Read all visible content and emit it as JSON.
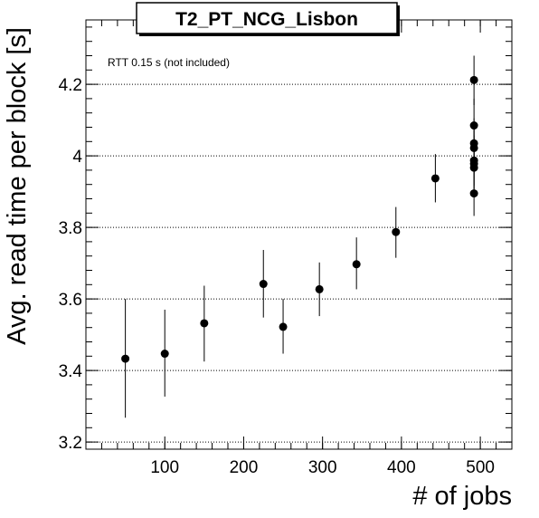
{
  "chart_data": {
    "type": "scatter",
    "title": "T2_PT_NCG_Lisbon",
    "annotation": "RTT 0.15 s (not included)",
    "xlabel": "# of jobs",
    "ylabel": "Avg. read time per block [s]",
    "xlim": [
      0,
      540
    ],
    "ylim": [
      3.18,
      4.38
    ],
    "x_ticks": [
      100,
      200,
      300,
      400,
      500
    ],
    "y_ticks": [
      3.2,
      3.4,
      3.6,
      3.8,
      4.0,
      4.2
    ],
    "y_tick_labels": [
      "3.2",
      "3.4",
      "3.6",
      "3.8",
      "4",
      "4.2"
    ],
    "grid": "horizontal dotted",
    "marker_color": "#000000",
    "points": [
      {
        "x": 50,
        "y": 3.433,
        "yerr_low": 3.268,
        "yerr_high": 3.6
      },
      {
        "x": 100,
        "y": 3.447,
        "yerr_low": 3.327,
        "yerr_high": 3.57
      },
      {
        "x": 150,
        "y": 3.532,
        "yerr_low": 3.425,
        "yerr_high": 3.637
      },
      {
        "x": 225,
        "y": 3.642,
        "yerr_low": 3.548,
        "yerr_high": 3.737
      },
      {
        "x": 250,
        "y": 3.522,
        "yerr_low": 3.447,
        "yerr_high": 3.6
      },
      {
        "x": 296,
        "y": 3.627,
        "yerr_low": 3.552,
        "yerr_high": 3.702
      },
      {
        "x": 343,
        "y": 3.697,
        "yerr_low": 3.627,
        "yerr_high": 3.772
      },
      {
        "x": 393,
        "y": 3.787,
        "yerr_low": 3.715,
        "yerr_high": 3.857
      },
      {
        "x": 443,
        "y": 3.937,
        "yerr_low": 3.87,
        "yerr_high": 4.005
      },
      {
        "x": 492,
        "y": 4.212,
        "yerr_low": 4.142,
        "yerr_high": 4.28
      },
      {
        "x": 492,
        "y": 4.085,
        "yerr_low": 4.01,
        "yerr_high": 4.16
      },
      {
        "x": 492,
        "y": 4.035,
        "yerr_low": 3.965,
        "yerr_high": 4.105
      },
      {
        "x": 492,
        "y": 4.022,
        "yerr_low": 3.952,
        "yerr_high": 4.092
      },
      {
        "x": 492,
        "y": 3.987,
        "yerr_low": 3.917,
        "yerr_high": 4.057
      },
      {
        "x": 492,
        "y": 3.978,
        "yerr_low": 3.908,
        "yerr_high": 4.048
      },
      {
        "x": 492,
        "y": 3.967,
        "yerr_low": 3.897,
        "yerr_high": 4.037
      },
      {
        "x": 492,
        "y": 3.895,
        "yerr_low": 3.832,
        "yerr_high": 3.96
      }
    ]
  }
}
